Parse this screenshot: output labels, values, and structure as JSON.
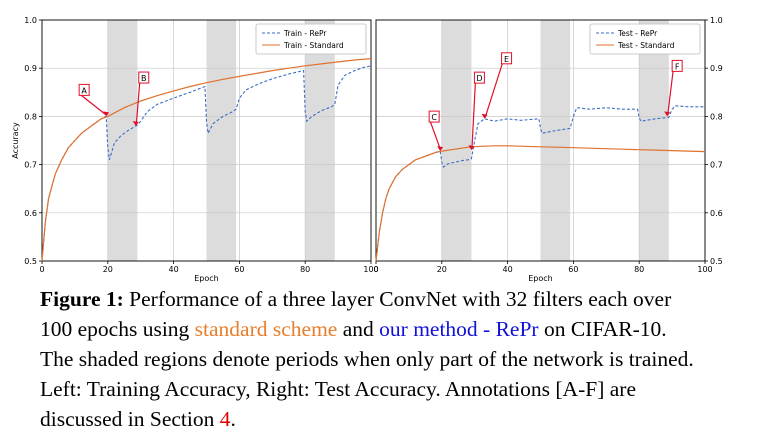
{
  "colors": {
    "repr": "#3d6fc4",
    "standard": "#e0712e",
    "annotation": "#e0102a",
    "shade": "#dcdcdc"
  },
  "chart_data": [
    {
      "type": "line",
      "panel": "left",
      "title": "",
      "xlabel": "Epoch",
      "ylabel": "Accuracy",
      "xlim": [
        0,
        100
      ],
      "ylim": [
        0.5,
        1.0
      ],
      "xticks": [
        "0",
        "20",
        "40",
        "60",
        "80",
        "100"
      ],
      "yticks": [
        "0.5",
        "0.6",
        "0.7",
        "0.8",
        "0.9",
        "1.0"
      ],
      "y_axis_side": "left",
      "grid": true,
      "legend_position": "top-right",
      "shaded_regions": [
        [
          20,
          29
        ],
        [
          50,
          59
        ],
        [
          80,
          89
        ]
      ],
      "series": [
        {
          "name": "Train - RePr",
          "style": "dashed",
          "points": [
            [
              0,
              0.5
            ],
            [
              1,
              0.58
            ],
            [
              2,
              0.63
            ],
            [
              4,
              0.68
            ],
            [
              6,
              0.71
            ],
            [
              8,
              0.735
            ],
            [
              10,
              0.75
            ],
            [
              12,
              0.765
            ],
            [
              14,
              0.775
            ],
            [
              16,
              0.785
            ],
            [
              18,
              0.795
            ],
            [
              19.5,
              0.8
            ],
            [
              20,
              0.735
            ],
            [
              20.5,
              0.71
            ],
            [
              22,
              0.745
            ],
            [
              24,
              0.76
            ],
            [
              26,
              0.77
            ],
            [
              28,
              0.778
            ],
            [
              29,
              0.782
            ],
            [
              30,
              0.79
            ],
            [
              32,
              0.81
            ],
            [
              35,
              0.825
            ],
            [
              40,
              0.838
            ],
            [
              45,
              0.85
            ],
            [
              49.5,
              0.862
            ],
            [
              50,
              0.79
            ],
            [
              50.5,
              0.765
            ],
            [
              52,
              0.785
            ],
            [
              55,
              0.8
            ],
            [
              58,
              0.81
            ],
            [
              59,
              0.815
            ],
            [
              60,
              0.838
            ],
            [
              62,
              0.855
            ],
            [
              66,
              0.868
            ],
            [
              70,
              0.878
            ],
            [
              75,
              0.888
            ],
            [
              79.5,
              0.895
            ],
            [
              80,
              0.81
            ],
            [
              80.5,
              0.79
            ],
            [
              82,
              0.8
            ],
            [
              85,
              0.812
            ],
            [
              88,
              0.82
            ],
            [
              89,
              0.825
            ],
            [
              90,
              0.865
            ],
            [
              92,
              0.885
            ],
            [
              95,
              0.895
            ],
            [
              98,
              0.902
            ],
            [
              100,
              0.905
            ]
          ]
        },
        {
          "name": "Train - Standard",
          "style": "solid",
          "points": [
            [
              0,
              0.5
            ],
            [
              1,
              0.58
            ],
            [
              2,
              0.63
            ],
            [
              4,
              0.68
            ],
            [
              6,
              0.71
            ],
            [
              8,
              0.735
            ],
            [
              10,
              0.75
            ],
            [
              12,
              0.765
            ],
            [
              14,
              0.775
            ],
            [
              16,
              0.785
            ],
            [
              18,
              0.795
            ],
            [
              20,
              0.8
            ],
            [
              25,
              0.818
            ],
            [
              30,
              0.832
            ],
            [
              35,
              0.843
            ],
            [
              40,
              0.853
            ],
            [
              45,
              0.862
            ],
            [
              50,
              0.87
            ],
            [
              55,
              0.877
            ],
            [
              60,
              0.883
            ],
            [
              65,
              0.889
            ],
            [
              70,
              0.895
            ],
            [
              75,
              0.9
            ],
            [
              80,
              0.905
            ],
            [
              85,
              0.909
            ],
            [
              90,
              0.913
            ],
            [
              95,
              0.917
            ],
            [
              100,
              0.92
            ]
          ]
        }
      ],
      "annotations": [
        {
          "label": "A",
          "x": 19.5,
          "y": 0.8
        },
        {
          "label": "B",
          "x": 28.5,
          "y": 0.78
        }
      ]
    },
    {
      "type": "line",
      "panel": "right",
      "title": "",
      "xlabel": "Epoch",
      "ylabel": "",
      "xlim": [
        0,
        100
      ],
      "ylim": [
        0.5,
        1.0
      ],
      "xticks": [
        "0",
        "20",
        "40",
        "60",
        "80",
        "100"
      ],
      "yticks": [
        "0.5",
        "0.6",
        "0.7",
        "0.8",
        "0.9",
        "1.0"
      ],
      "y_axis_side": "right",
      "grid": true,
      "legend_position": "top-right",
      "shaded_regions": [
        [
          20,
          29
        ],
        [
          50,
          59
        ],
        [
          80,
          89
        ]
      ],
      "series": [
        {
          "name": "Test - RePr",
          "style": "dashed",
          "points": [
            [
              0,
              0.5
            ],
            [
              1,
              0.56
            ],
            [
              2,
              0.6
            ],
            [
              3,
              0.63
            ],
            [
              4,
              0.65
            ],
            [
              6,
              0.675
            ],
            [
              8,
              0.69
            ],
            [
              10,
              0.7
            ],
            [
              12,
              0.71
            ],
            [
              14,
              0.715
            ],
            [
              16,
              0.72
            ],
            [
              18,
              0.725
            ],
            [
              19.5,
              0.728
            ],
            [
              20,
              0.705
            ],
            [
              20.5,
              0.695
            ],
            [
              22,
              0.702
            ],
            [
              24,
              0.705
            ],
            [
              26,
              0.708
            ],
            [
              28,
              0.71
            ],
            [
              29,
              0.712
            ],
            [
              30,
              0.75
            ],
            [
              31,
              0.785
            ],
            [
              33,
              0.795
            ],
            [
              36,
              0.79
            ],
            [
              40,
              0.795
            ],
            [
              44,
              0.792
            ],
            [
              49.5,
              0.795
            ],
            [
              50,
              0.775
            ],
            [
              50.5,
              0.765
            ],
            [
              54,
              0.77
            ],
            [
              59,
              0.775
            ],
            [
              60,
              0.8
            ],
            [
              61,
              0.818
            ],
            [
              65,
              0.815
            ],
            [
              70,
              0.818
            ],
            [
              75,
              0.815
            ],
            [
              79.5,
              0.815
            ],
            [
              80,
              0.798
            ],
            [
              80.5,
              0.79
            ],
            [
              85,
              0.795
            ],
            [
              89,
              0.798
            ],
            [
              90,
              0.815
            ],
            [
              91,
              0.822
            ],
            [
              95,
              0.82
            ],
            [
              100,
              0.82
            ]
          ]
        },
        {
          "name": "Test - Standard",
          "style": "solid",
          "points": [
            [
              0,
              0.5
            ],
            [
              1,
              0.56
            ],
            [
              2,
              0.6
            ],
            [
              3,
              0.63
            ],
            [
              4,
              0.65
            ],
            [
              6,
              0.675
            ],
            [
              8,
              0.69
            ],
            [
              10,
              0.7
            ],
            [
              12,
              0.71
            ],
            [
              14,
              0.715
            ],
            [
              16,
              0.72
            ],
            [
              18,
              0.725
            ],
            [
              20,
              0.728
            ],
            [
              24,
              0.732
            ],
            [
              28,
              0.736
            ],
            [
              32,
              0.738
            ],
            [
              36,
              0.739
            ],
            [
              40,
              0.739
            ],
            [
              45,
              0.738
            ],
            [
              50,
              0.737
            ],
            [
              55,
              0.736
            ],
            [
              60,
              0.735
            ],
            [
              65,
              0.734
            ],
            [
              70,
              0.733
            ],
            [
              75,
              0.732
            ],
            [
              80,
              0.731
            ],
            [
              85,
              0.73
            ],
            [
              90,
              0.729
            ],
            [
              95,
              0.728
            ],
            [
              100,
              0.727
            ]
          ]
        }
      ],
      "annotations": [
        {
          "label": "C",
          "x": 19.5,
          "y": 0.728
        },
        {
          "label": "D",
          "x": 29,
          "y": 0.73
        },
        {
          "label": "E",
          "x": 33,
          "y": 0.795
        },
        {
          "label": "F",
          "x": 88.5,
          "y": 0.8
        }
      ]
    }
  ],
  "caption": {
    "label": "Figure 1:",
    "text_1": " Performance of a three layer ConvNet with 32 filters each over 100 epochs using ",
    "standard": "standard scheme",
    "text_2": " and ",
    "method": "our method - RePr",
    "text_3": " on CIFAR-10. The shaded regions denote periods when only part of the network is trained. Left: Training Accuracy, Right: Test Accuracy. Annotations [A-F] are discussed in Section ",
    "section": "4",
    "text_4": "."
  }
}
